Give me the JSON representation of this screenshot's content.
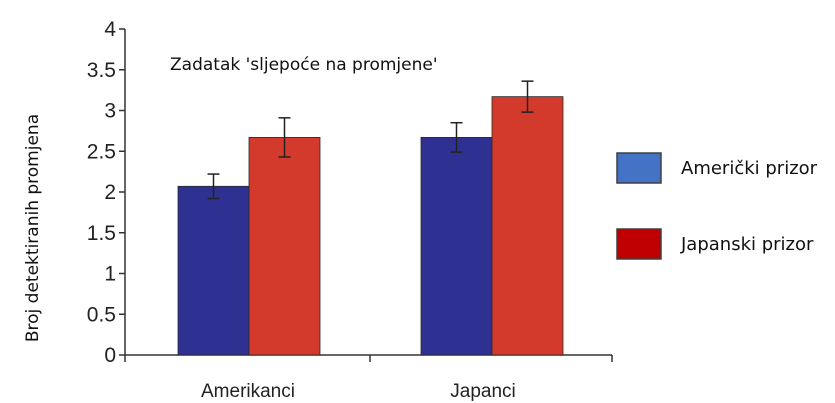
{
  "chart_data": {
    "type": "bar",
    "title": "",
    "annotation": "Zadatak 'sljepoće na promjene'",
    "ylabel": "Broj detektiranih promjena",
    "xlabel": "",
    "ylim": [
      0,
      4
    ],
    "yticks": [
      "0",
      "0.5",
      "1",
      "1.5",
      "2",
      "2.5",
      "3",
      "3.5",
      "4"
    ],
    "categories": [
      "Amerikanci",
      "Japanci"
    ],
    "series": [
      {
        "name": "Američki prizor",
        "color": "#2e3192",
        "legend_color": "#4472c4",
        "values": [
          2.07,
          2.67
        ],
        "errors": [
          0.15,
          0.18
        ]
      },
      {
        "name": "Japanski prizor",
        "color": "#d33a2c",
        "legend_color": "#c00000",
        "values": [
          2.67,
          3.17
        ],
        "errors": [
          0.24,
          0.19
        ]
      }
    ],
    "legend_position": "right",
    "grid": false
  }
}
